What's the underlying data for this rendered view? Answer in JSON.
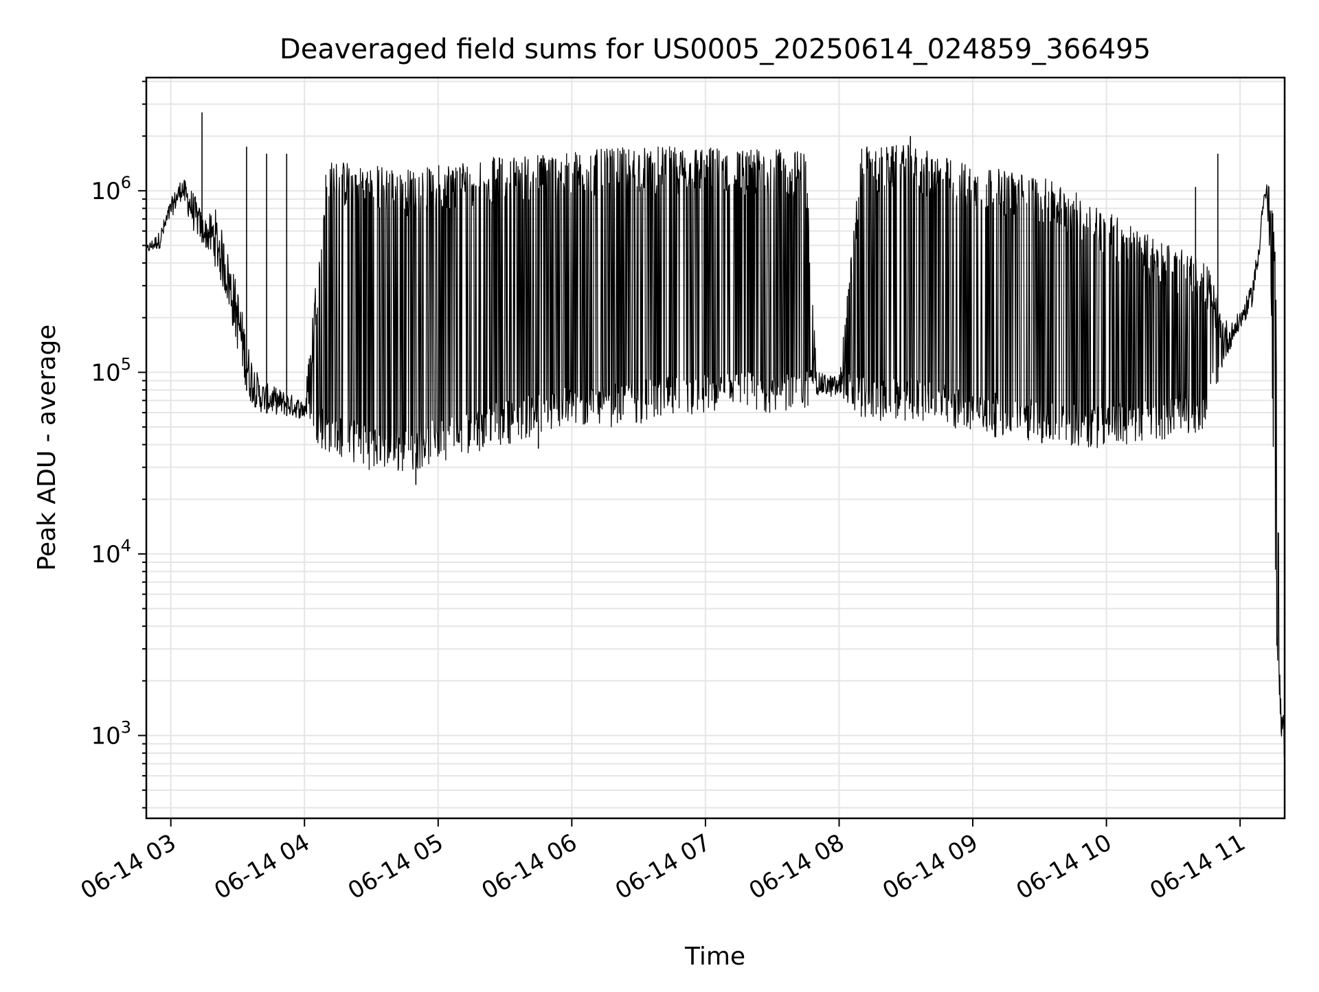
{
  "chart_data": {
    "type": "line",
    "title": "Deaveraged field sums for US0005_20250614_024859_366495",
    "xlabel": "Time",
    "ylabel": "Peak ADU - average",
    "yscale": "log",
    "ylim": [
      350,
      4200000
    ],
    "xlim": [
      "2025-06-14 02:49",
      "2025-06-14 11:20"
    ],
    "grid": true,
    "legend": "none",
    "colors": {
      "line": "#000000",
      "grid": "#e5e5e5",
      "frame": "#000000",
      "background": "#ffffff"
    },
    "x_ticks": [
      {
        "time": "2025-06-14 03:00",
        "label": "06-14 03"
      },
      {
        "time": "2025-06-14 04:00",
        "label": "06-14 04"
      },
      {
        "time": "2025-06-14 05:00",
        "label": "06-14 05"
      },
      {
        "time": "2025-06-14 06:00",
        "label": "06-14 06"
      },
      {
        "time": "2025-06-14 07:00",
        "label": "06-14 07"
      },
      {
        "time": "2025-06-14 08:00",
        "label": "06-14 08"
      },
      {
        "time": "2025-06-14 09:00",
        "label": "06-14 09"
      },
      {
        "time": "2025-06-14 10:00",
        "label": "06-14 10"
      },
      {
        "time": "2025-06-14 11:00",
        "label": "06-14 11"
      }
    ],
    "y_ticks": [
      {
        "value": 1000,
        "base": "10",
        "exp": "3"
      },
      {
        "value": 10000,
        "base": "10",
        "exp": "4"
      },
      {
        "value": 100000,
        "base": "10",
        "exp": "5"
      },
      {
        "value": 1000000,
        "base": "10",
        "exp": "6"
      }
    ],
    "series": [
      {
        "envelope": {
          "note_free": true,
          "time": [
            "2025-06-14 02:49",
            "2025-06-14 02:55",
            "2025-06-14 03:00",
            "2025-06-14 03:05",
            "2025-06-14 03:10",
            "2025-06-14 03:15",
            "2025-06-14 03:20",
            "2025-06-14 03:25",
            "2025-06-14 03:30",
            "2025-06-14 03:35",
            "2025-06-14 03:40",
            "2025-06-14 03:50",
            "2025-06-14 04:00",
            "2025-06-14 04:10",
            "2025-06-14 04:20",
            "2025-06-14 04:30",
            "2025-06-14 04:40",
            "2025-06-14 04:50",
            "2025-06-14 05:00",
            "2025-06-14 05:15",
            "2025-06-14 05:30",
            "2025-06-14 05:45",
            "2025-06-14 06:00",
            "2025-06-14 06:15",
            "2025-06-14 06:30",
            "2025-06-14 06:45",
            "2025-06-14 07:00",
            "2025-06-14 07:15",
            "2025-06-14 07:30",
            "2025-06-14 07:45",
            "2025-06-14 07:50",
            "2025-06-14 08:00",
            "2025-06-14 08:10",
            "2025-06-14 08:20",
            "2025-06-14 08:30",
            "2025-06-14 08:40",
            "2025-06-14 08:50",
            "2025-06-14 09:00",
            "2025-06-14 09:15",
            "2025-06-14 09:30",
            "2025-06-14 09:45",
            "2025-06-14 10:00",
            "2025-06-14 10:15",
            "2025-06-14 10:30",
            "2025-06-14 10:45",
            "2025-06-14 10:55",
            "2025-06-14 11:00",
            "2025-06-14 11:05",
            "2025-06-14 11:08",
            "2025-06-14 11:10",
            "2025-06-14 11:12",
            "2025-06-14 11:14",
            "2025-06-14 11:16",
            "2025-06-14 11:18",
            "2025-06-14 11:20"
          ],
          "low": [
            450000,
            480000,
            700000,
            900000,
            600000,
            500000,
            380000,
            250000,
            130000,
            70000,
            60000,
            58000,
            55000,
            45000,
            40000,
            36000,
            34000,
            36000,
            40000,
            45000,
            50000,
            55000,
            60000,
            62000,
            65000,
            68000,
            70000,
            72000,
            72000,
            75000,
            75000,
            72000,
            70000,
            65000,
            68000,
            65000,
            60000,
            55000,
            55000,
            50000,
            48000,
            48000,
            50000,
            55000,
            60000,
            130000,
            170000,
            220000,
            350000,
            700000,
            950000,
            200000,
            5000,
            1200,
            600
          ],
          "high": [
            500000,
            600000,
            900000,
            1200000,
            1000000,
            700000,
            800000,
            500000,
            300000,
            140000,
            90000,
            80000,
            70000,
            1450000,
            1450000,
            1400000,
            1350000,
            1300000,
            1400000,
            1500000,
            1550000,
            1600000,
            1650000,
            1700000,
            1750000,
            1750000,
            1750000,
            1700000,
            1700000,
            1650000,
            100000,
            95000,
            1750000,
            1750000,
            1800000,
            1650000,
            1500000,
            1400000,
            1300000,
            1200000,
            1000000,
            800000,
            600000,
            500000,
            400000,
            180000,
            220000,
            300000,
            500000,
            900000,
            1100000,
            1050000,
            400000,
            1800,
            1200
          ]
        },
        "spikes": [
          {
            "time": "2025-06-14 03:14",
            "value": 2700000
          },
          {
            "time": "2025-06-14 03:34",
            "value": 1750000
          },
          {
            "time": "2025-06-14 03:43",
            "value": 1600000
          },
          {
            "time": "2025-06-14 03:52",
            "value": 1600000
          },
          {
            "time": "2025-06-14 08:32",
            "value": 2000000
          },
          {
            "time": "2025-06-14 10:40",
            "value": 1050000
          },
          {
            "time": "2025-06-14 10:50",
            "value": 1600000
          },
          {
            "time": "2025-06-14 05:45",
            "value": 38000
          },
          {
            "time": "2025-06-14 04:50",
            "value": 24000
          }
        ]
      }
    ]
  }
}
